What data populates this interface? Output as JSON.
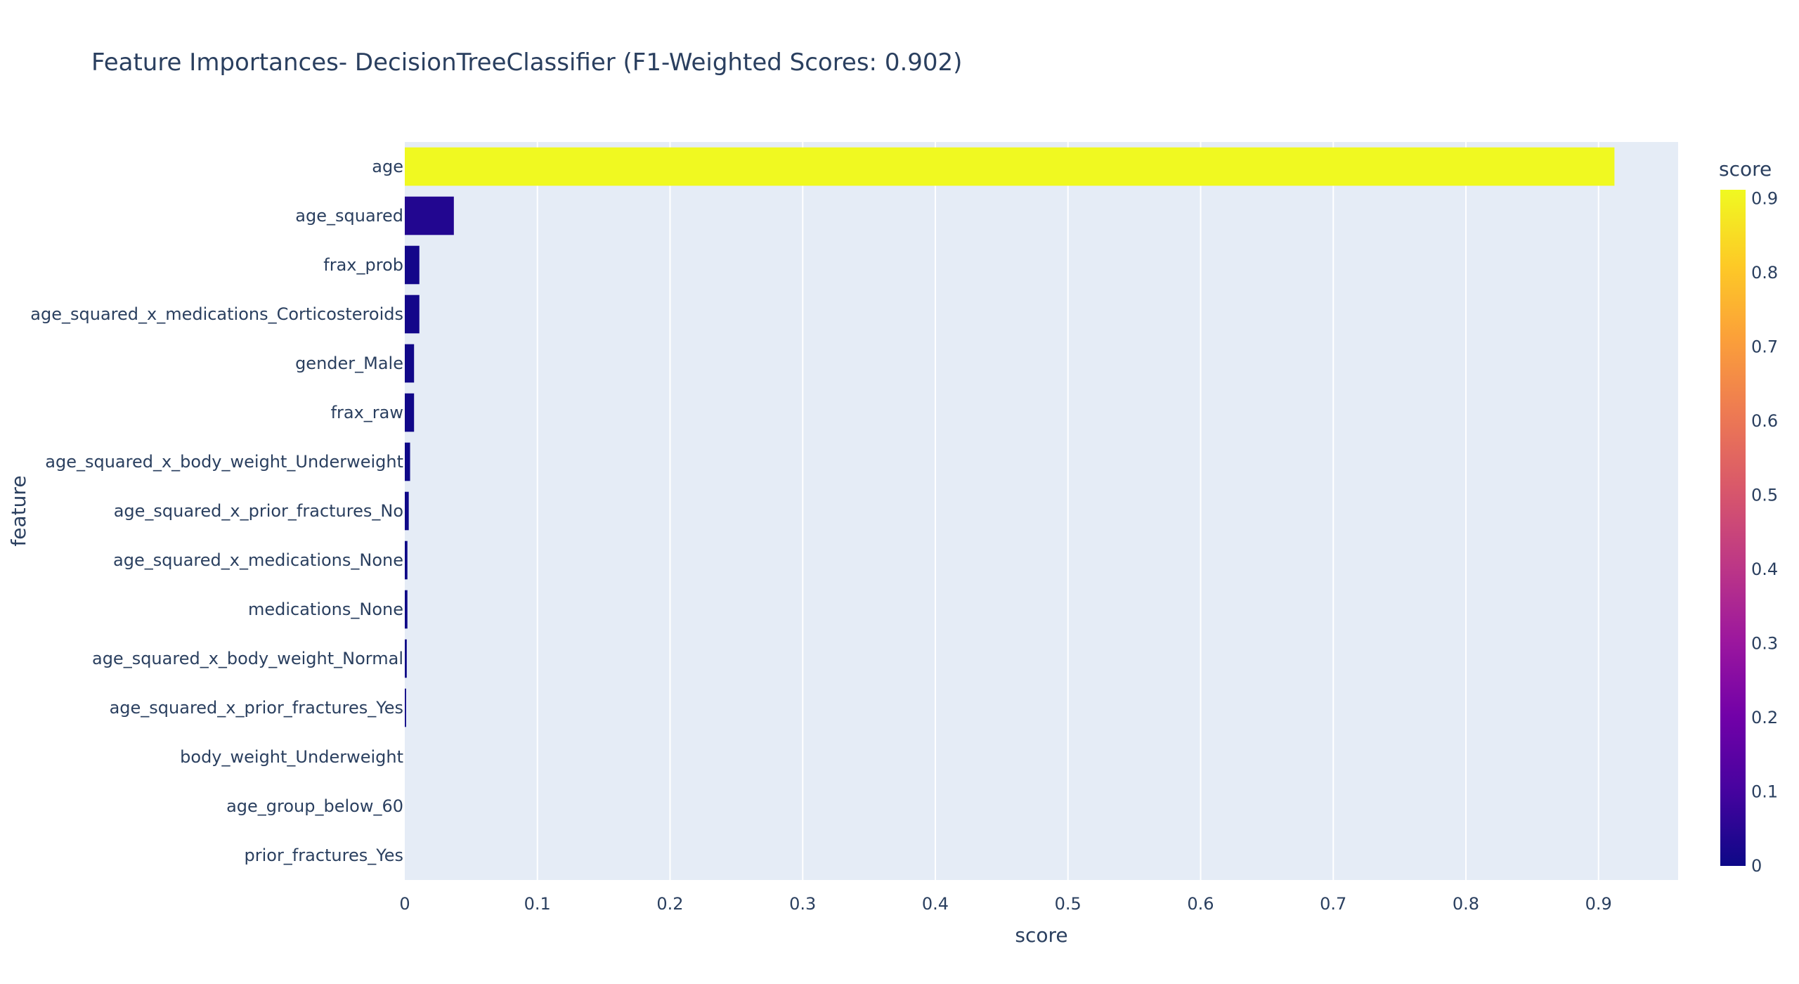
{
  "chart_data": {
    "type": "bar",
    "orientation": "horizontal",
    "title": "Feature Importances- DecisionTreeClassifier (F1-Weighted Scores: 0.902)",
    "xlabel": "score",
    "ylabel": "feature",
    "xlim": [
      0,
      0.96
    ],
    "xticks": [
      0,
      0.1,
      0.2,
      0.3,
      0.4,
      0.5,
      0.6,
      0.7,
      0.8,
      0.9
    ],
    "xtick_labels": [
      "0",
      "0.1",
      "0.2",
      "0.3",
      "0.4",
      "0.5",
      "0.6",
      "0.7",
      "0.8",
      "0.9"
    ],
    "grid": true,
    "plot_background": "#e5ecf6",
    "categories": [
      "age",
      "age_squared",
      "frax_prob",
      "age_squared_x_medications_Corticosteroids",
      "gender_Male",
      "frax_raw",
      "age_squared_x_body_weight_Underweight",
      "age_squared_x_prior_fractures_No",
      "age_squared_x_medications_None",
      "medications_None",
      "age_squared_x_body_weight_Normal",
      "age_squared_x_prior_fractures_Yes",
      "body_weight_Underweight",
      "age_group_below_60",
      "prior_fractures_Yes"
    ],
    "values": [
      0.912,
      0.037,
      0.011,
      0.011,
      0.007,
      0.007,
      0.004,
      0.003,
      0.002,
      0.002,
      0.0015,
      0.001,
      0,
      0,
      0
    ],
    "colorbar": {
      "title": "score",
      "range": [
        0,
        0.912
      ],
      "ticks": [
        0,
        0.1,
        0.2,
        0.3,
        0.4,
        0.5,
        0.6,
        0.7,
        0.8,
        0.9
      ],
      "tick_labels": [
        "0",
        "0.1",
        "0.2",
        "0.3",
        "0.4",
        "0.5",
        "0.6",
        "0.7",
        "0.8",
        "0.9"
      ],
      "colorscale": [
        "#0d0887",
        "#46039f",
        "#7201a8",
        "#9c179e",
        "#bd3786",
        "#d8576b",
        "#ed7953",
        "#fb9f3a",
        "#fdca26",
        "#f0f921"
      ]
    }
  }
}
